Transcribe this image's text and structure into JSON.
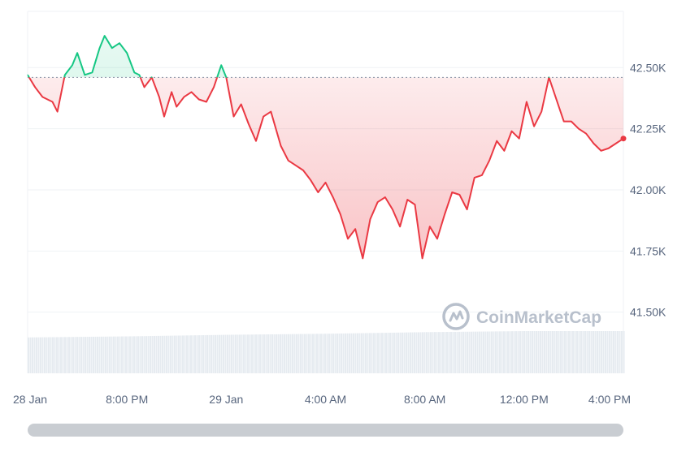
{
  "chart_data": {
    "type": "area",
    "watermark": "CoinMarketCap",
    "reference_price": 42460,
    "colors": {
      "above": "#16c784",
      "below": "#ea3943",
      "grid": "#eff2f5",
      "volume": "#e6ebf0",
      "reference_line": "#8a94a6"
    },
    "y_axis": {
      "ticks": [
        {
          "value": 41500,
          "label": "41.50K"
        },
        {
          "value": 41750,
          "label": "41.75K"
        },
        {
          "value": 42000,
          "label": "42.00K"
        },
        {
          "value": 42250,
          "label": "42.25K"
        },
        {
          "value": 42500,
          "label": "42.50K"
        }
      ],
      "position": "right"
    },
    "x_axis": {
      "ticks": [
        "28 Jan",
        "8:00 PM",
        "29 Jan",
        "4:00 AM",
        "8:00 AM",
        "12:00 PM",
        "4:00 PM"
      ]
    },
    "series": [
      {
        "x": [
          0,
          0.3,
          0.6,
          1.0,
          1.2,
          1.5,
          1.8,
          2.0,
          2.3,
          2.6,
          2.9,
          3.1,
          3.4,
          3.7,
          4.0,
          4.3,
          4.5,
          4.7,
          5.0,
          5.3,
          5.5,
          5.8,
          6.0,
          6.3,
          6.6,
          6.9,
          7.2,
          7.5,
          7.8,
          8.0,
          8.3,
          8.6,
          8.9,
          9.2,
          9.5,
          9.8,
          10.2,
          10.5,
          10.8,
          11.1,
          11.4,
          11.7,
          12.0,
          12.3,
          12.6,
          12.9,
          13.2,
          13.5,
          13.8,
          14.1,
          14.4,
          14.7,
          15.0,
          15.3,
          15.6,
          15.9,
          16.2,
          16.5,
          16.8,
          17.1,
          17.4,
          17.7,
          18.0,
          18.3,
          18.6,
          18.9,
          19.2,
          19.5,
          19.8,
          20.1,
          20.4,
          20.7,
          21.0,
          21.3,
          21.6,
          21.9,
          22.2,
          22.5,
          22.8,
          23.1,
          23.4,
          23.7,
          24.0
        ],
        "values": [
          42470,
          42420,
          42380,
          42360,
          42320,
          42470,
          42510,
          42560,
          42470,
          42480,
          42580,
          42630,
          42580,
          42600,
          42560,
          42480,
          42470,
          42420,
          42460,
          42380,
          42300,
          42400,
          42340,
          42380,
          42400,
          42370,
          42360,
          42420,
          42510,
          42460,
          42300,
          42350,
          42270,
          42200,
          42300,
          42320,
          42180,
          42120,
          42100,
          42080,
          42040,
          41990,
          42030,
          41970,
          41900,
          41800,
          41840,
          41720,
          41880,
          41950,
          41970,
          41920,
          41850,
          41960,
          41940,
          41720,
          41850,
          41800,
          41900,
          41990,
          41980,
          41920,
          42050,
          42060,
          42120,
          42200,
          42160,
          42240,
          42210,
          42360,
          42260,
          42320,
          42460,
          42370,
          42280,
          42280,
          42250,
          42230,
          42190,
          42160,
          42170,
          42190,
          42210
        ]
      }
    ],
    "volume": {
      "x": [
        0,
        4,
        8,
        12,
        16,
        20,
        24
      ],
      "values": [
        0.68,
        0.7,
        0.73,
        0.75,
        0.78,
        0.8,
        0.8
      ]
    }
  }
}
